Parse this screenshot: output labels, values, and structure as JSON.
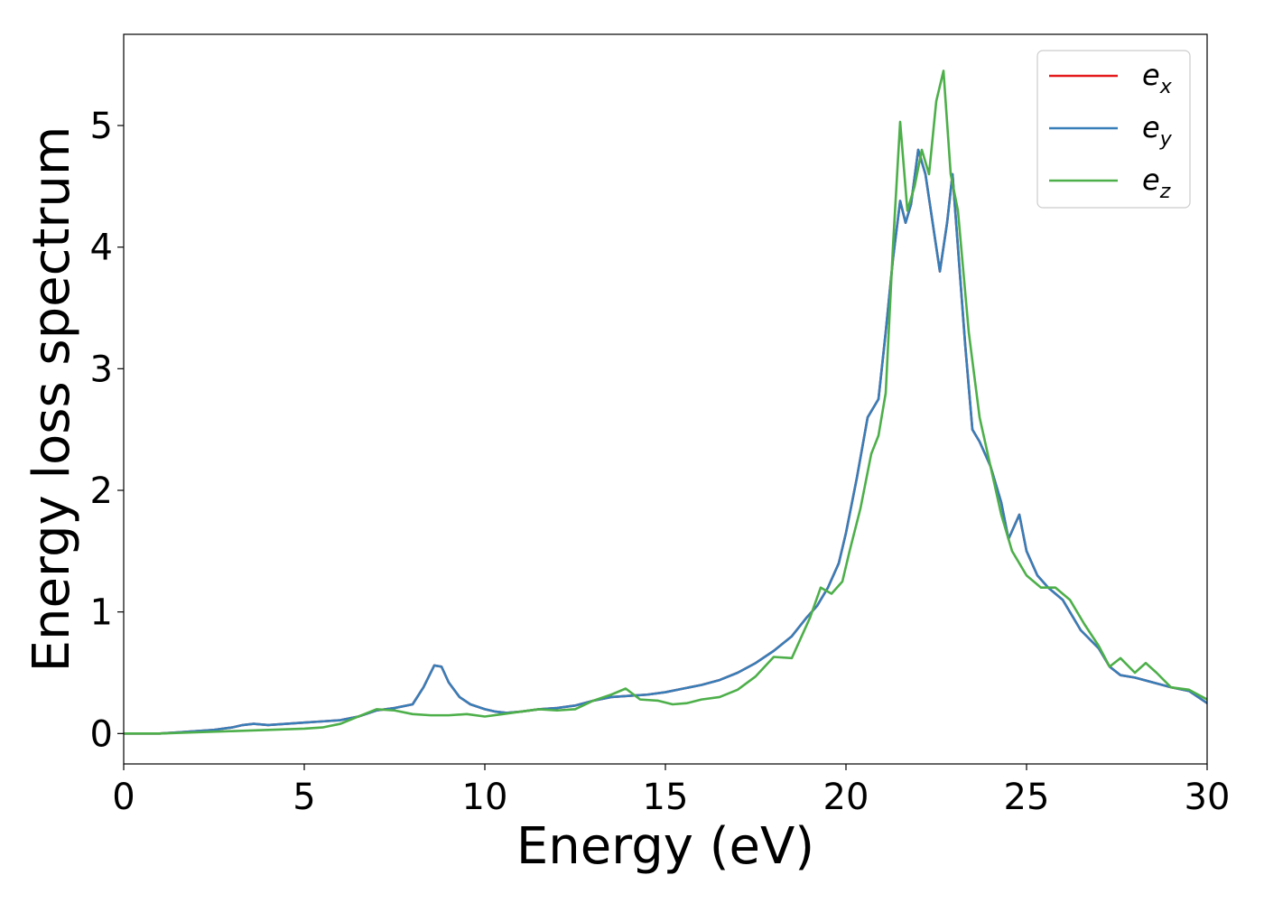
{
  "chart_data": {
    "type": "line",
    "title": "",
    "xlabel": "Energy (eV)",
    "ylabel": "Energy loss spectrum",
    "xlim": [
      0,
      30
    ],
    "ylim": [
      -0.25,
      5.75
    ],
    "x_ticks": [
      "0",
      "5",
      "10",
      "15",
      "20",
      "25",
      "30"
    ],
    "y_ticks": [
      "0",
      "1",
      "2",
      "3",
      "4",
      "5"
    ],
    "grid": false,
    "legend_position": "top-right",
    "series": [
      {
        "name": "e_x",
        "label_base": "e",
        "label_sub": "x",
        "color": "#e41a1c",
        "x": [
          0,
          1,
          1.5,
          2,
          2.5,
          3,
          3.3,
          3.6,
          4,
          4.5,
          5,
          5.5,
          6,
          6.5,
          7,
          7.5,
          8,
          8.3,
          8.6,
          8.8,
          9,
          9.3,
          9.6,
          10,
          10.3,
          10.6,
          11,
          11.5,
          12,
          12.5,
          13,
          13.5,
          14,
          14.5,
          15,
          15.5,
          16,
          16.5,
          17,
          17.5,
          18,
          18.5,
          18.9,
          19.2,
          19.5,
          19.8,
          20,
          20.3,
          20.6,
          20.9,
          21.1,
          21.3,
          21.5,
          21.65,
          21.8,
          22,
          22.2,
          22.4,
          22.6,
          22.8,
          22.95,
          23.1,
          23.3,
          23.5,
          23.7,
          24,
          24.3,
          24.5,
          24.8,
          25,
          25.3,
          25.6,
          26,
          26.5,
          27,
          27.3,
          27.6,
          28,
          28.5,
          29,
          29.5,
          30
        ],
        "y": [
          0,
          0,
          0.01,
          0.02,
          0.03,
          0.05,
          0.07,
          0.08,
          0.07,
          0.08,
          0.09,
          0.1,
          0.11,
          0.14,
          0.19,
          0.21,
          0.24,
          0.38,
          0.56,
          0.55,
          0.42,
          0.3,
          0.24,
          0.2,
          0.18,
          0.17,
          0.18,
          0.2,
          0.21,
          0.23,
          0.27,
          0.3,
          0.31,
          0.32,
          0.34,
          0.37,
          0.4,
          0.44,
          0.5,
          0.58,
          0.68,
          0.8,
          0.95,
          1.05,
          1.2,
          1.4,
          1.65,
          2.1,
          2.6,
          2.75,
          3.3,
          3.9,
          4.38,
          4.2,
          4.35,
          4.8,
          4.6,
          4.2,
          3.8,
          4.2,
          4.6,
          4.0,
          3.2,
          2.5,
          2.4,
          2.2,
          1.9,
          1.6,
          1.8,
          1.5,
          1.3,
          1.2,
          1.1,
          0.85,
          0.7,
          0.55,
          0.48,
          0.46,
          0.42,
          0.38,
          0.35,
          0.25
        ]
      },
      {
        "name": "e_y",
        "label_base": "e",
        "label_sub": "y",
        "color": "#377eb8",
        "x": [
          0,
          1,
          1.5,
          2,
          2.5,
          3,
          3.3,
          3.6,
          4,
          4.5,
          5,
          5.5,
          6,
          6.5,
          7,
          7.5,
          8,
          8.3,
          8.6,
          8.8,
          9,
          9.3,
          9.6,
          10,
          10.3,
          10.6,
          11,
          11.5,
          12,
          12.5,
          13,
          13.5,
          14,
          14.5,
          15,
          15.5,
          16,
          16.5,
          17,
          17.5,
          18,
          18.5,
          18.9,
          19.2,
          19.5,
          19.8,
          20,
          20.3,
          20.6,
          20.9,
          21.1,
          21.3,
          21.5,
          21.65,
          21.8,
          22,
          22.2,
          22.4,
          22.6,
          22.8,
          22.95,
          23.1,
          23.3,
          23.5,
          23.7,
          24,
          24.3,
          24.5,
          24.8,
          25,
          25.3,
          25.6,
          26,
          26.5,
          27,
          27.3,
          27.6,
          28,
          28.5,
          29,
          29.5,
          30
        ],
        "y": [
          0,
          0,
          0.01,
          0.02,
          0.03,
          0.05,
          0.07,
          0.08,
          0.07,
          0.08,
          0.09,
          0.1,
          0.11,
          0.14,
          0.19,
          0.21,
          0.24,
          0.38,
          0.56,
          0.55,
          0.42,
          0.3,
          0.24,
          0.2,
          0.18,
          0.17,
          0.18,
          0.2,
          0.21,
          0.23,
          0.27,
          0.3,
          0.31,
          0.32,
          0.34,
          0.37,
          0.4,
          0.44,
          0.5,
          0.58,
          0.68,
          0.8,
          0.95,
          1.05,
          1.2,
          1.4,
          1.65,
          2.1,
          2.6,
          2.75,
          3.3,
          3.9,
          4.38,
          4.2,
          4.35,
          4.8,
          4.6,
          4.2,
          3.8,
          4.2,
          4.6,
          4.0,
          3.2,
          2.5,
          2.4,
          2.2,
          1.9,
          1.6,
          1.8,
          1.5,
          1.3,
          1.2,
          1.1,
          0.85,
          0.7,
          0.55,
          0.48,
          0.46,
          0.42,
          0.38,
          0.35,
          0.25
        ]
      },
      {
        "name": "e_z",
        "label_base": "e",
        "label_sub": "z",
        "color": "#4daf4a",
        "x": [
          0,
          1,
          2,
          3,
          4,
          5,
          5.5,
          6,
          6.5,
          7,
          7.5,
          8,
          8.5,
          9,
          9.5,
          10,
          10.5,
          11,
          11.5,
          12,
          12.5,
          13,
          13.5,
          13.9,
          14.3,
          14.8,
          15.2,
          15.6,
          16,
          16.5,
          17,
          17.5,
          18,
          18.5,
          19,
          19.3,
          19.6,
          19.9,
          20.1,
          20.4,
          20.7,
          20.9,
          21.1,
          21.3,
          21.5,
          21.7,
          21.9,
          22.1,
          22.3,
          22.5,
          22.7,
          22.9,
          23.1,
          23.4,
          23.7,
          24,
          24.3,
          24.6,
          25,
          25.4,
          25.8,
          26.2,
          26.6,
          27,
          27.3,
          27.6,
          28,
          28.3,
          28.6,
          29,
          29.5,
          30
        ],
        "y": [
          0,
          0,
          0.01,
          0.02,
          0.03,
          0.04,
          0.05,
          0.08,
          0.14,
          0.2,
          0.19,
          0.16,
          0.15,
          0.15,
          0.16,
          0.14,
          0.16,
          0.18,
          0.2,
          0.19,
          0.2,
          0.27,
          0.32,
          0.37,
          0.28,
          0.27,
          0.24,
          0.25,
          0.28,
          0.3,
          0.36,
          0.47,
          0.63,
          0.62,
          0.95,
          1.2,
          1.15,
          1.25,
          1.5,
          1.85,
          2.3,
          2.45,
          2.8,
          4.0,
          5.03,
          4.3,
          4.5,
          4.8,
          4.6,
          5.2,
          5.45,
          4.6,
          4.3,
          3.3,
          2.6,
          2.2,
          1.8,
          1.5,
          1.3,
          1.2,
          1.2,
          1.1,
          0.9,
          0.72,
          0.55,
          0.62,
          0.5,
          0.58,
          0.5,
          0.38,
          0.36,
          0.28
        ]
      }
    ]
  }
}
